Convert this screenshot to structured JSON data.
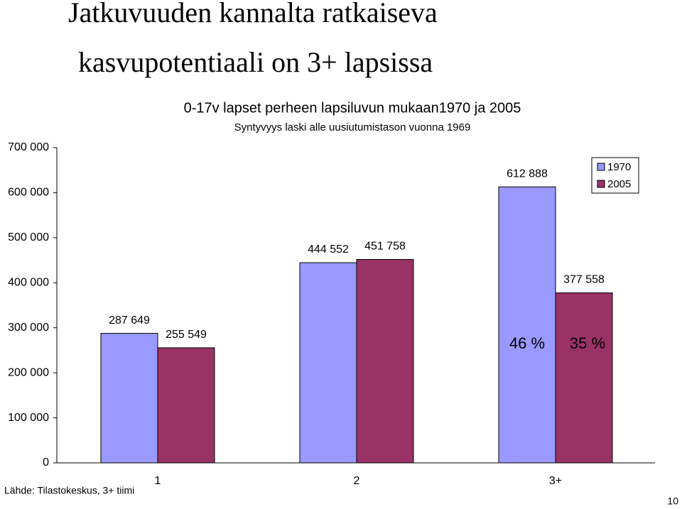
{
  "slide": {
    "title": [
      "Jatkuvuuden kannalta ratkaiseva",
      "kasvupotentiaali on 3+ lapsissa"
    ],
    "source": "Lähde: Tilastokeskus, 3+ tiimi",
    "page": "10"
  },
  "chart_data": {
    "type": "bar",
    "title": "0-17v lapset perheen lapsiluvun mukaan1970 ja 2005",
    "subtitle": "Syntyvyys laski alle uusiutumistason vuonna 1969",
    "categories": [
      "1",
      "2",
      "3+"
    ],
    "series": [
      {
        "name": "1970",
        "color": "#9999ff",
        "values": [
          287649,
          444552,
          612888
        ],
        "value_labels": [
          "287 649",
          "444 552",
          "612 888"
        ]
      },
      {
        "name": "2005",
        "color": "#993366",
        "values": [
          255549,
          451758,
          377558
        ],
        "value_labels": [
          "255 549",
          "451 758",
          "377 558"
        ]
      }
    ],
    "ylim": [
      0,
      700000
    ],
    "yticks": [
      {
        "value": 0,
        "label": "0"
      },
      {
        "value": 100000,
        "label": "100 000"
      },
      {
        "value": 200000,
        "label": "200 000"
      },
      {
        "value": 300000,
        "label": "300 000"
      },
      {
        "value": 400000,
        "label": "400 000"
      },
      {
        "value": 500000,
        "label": "500 000"
      },
      {
        "value": 600000,
        "label": "600 000"
      },
      {
        "value": 700000,
        "label": "700 000"
      }
    ],
    "annotations": [
      "46 %",
      "35 %"
    ],
    "legend": "top-right",
    "grid": false
  }
}
